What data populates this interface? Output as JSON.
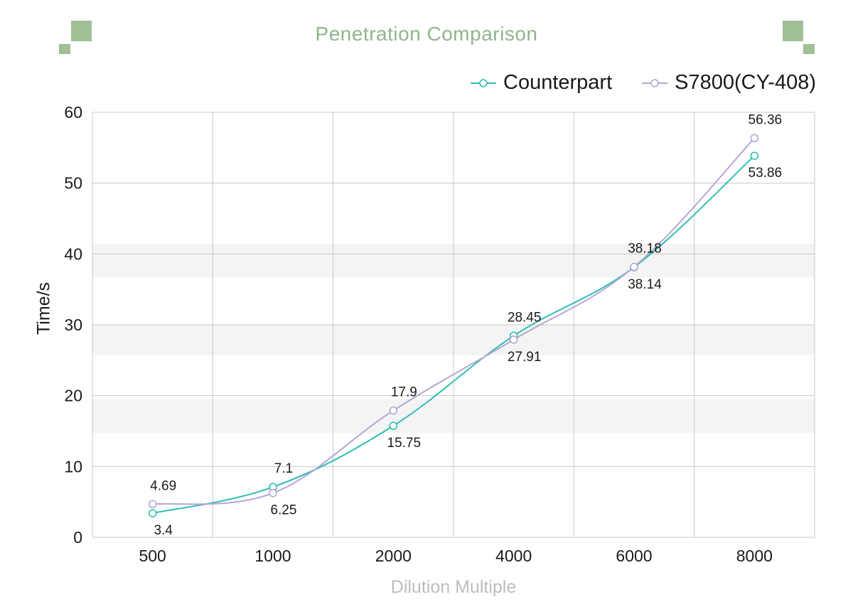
{
  "colors": {
    "counterpart": "#2ebfb4",
    "s7800": "#b7a5d4",
    "title": "#8fb58a",
    "decor": "#9fbf95",
    "grid": "#c8c8c8",
    "band": "#f4f4f4"
  },
  "chart_data": {
    "type": "line",
    "title": "Penetration Comparison",
    "xlabel": "Dilution Multiple",
    "ylabel": "Time/s",
    "categories": [
      "500",
      "1000",
      "2000",
      "4000",
      "6000",
      "8000"
    ],
    "ylim": [
      0,
      60
    ],
    "yticks": [
      0,
      10,
      20,
      30,
      40,
      50,
      60
    ],
    "grid": true,
    "legend_position": "top-right",
    "series": [
      {
        "name": "Counterpart",
        "values": [
          3.4,
          7.1,
          15.75,
          28.45,
          38.14,
          53.86
        ],
        "labels": [
          "3.4",
          "7.1",
          "15.75",
          "28.45",
          "38.14",
          "53.86"
        ]
      },
      {
        "name": "S7800(CY-408)",
        "values": [
          4.69,
          6.25,
          17.9,
          27.91,
          38.18,
          56.36
        ],
        "labels": [
          "4.69",
          "6.25",
          "17.9",
          "27.91",
          "38.18",
          "56.36"
        ]
      }
    ]
  }
}
